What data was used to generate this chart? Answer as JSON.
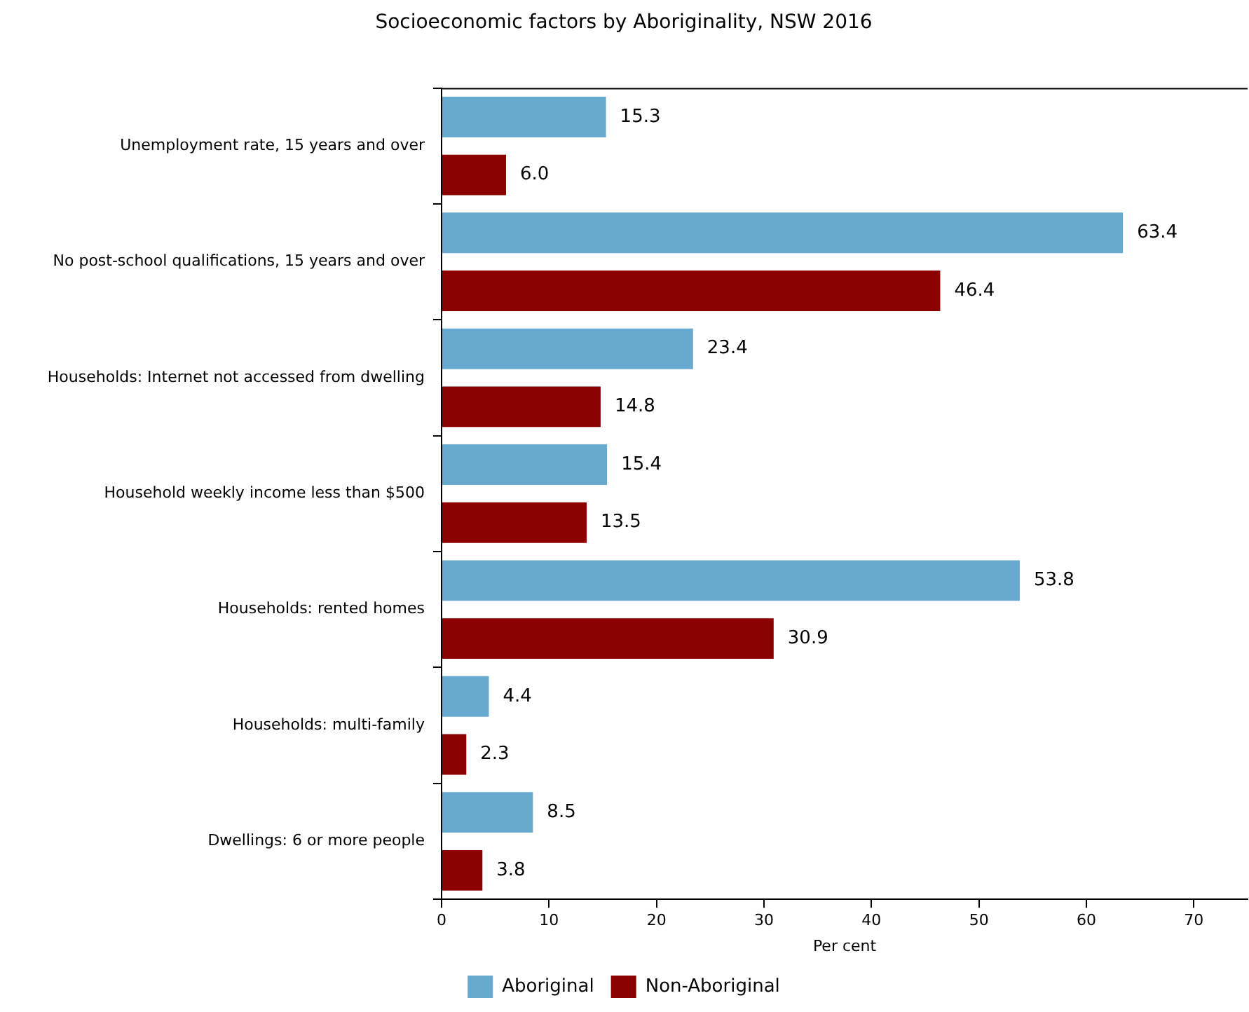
{
  "chart_data": {
    "type": "bar",
    "orientation": "horizontal",
    "title": "Socioeconomic factors by Aboriginality, NSW 2016",
    "xlabel": "Per cent",
    "categories": [
      "Unemployment rate, 15 years and over",
      "No post-school qualifications, 15 years and over",
      "Households: Internet not accessed from dwelling",
      "Household weekly income less than $500",
      "Households: rented homes",
      "Households: multi-family",
      "Dwellings: 6 or more people"
    ],
    "series": [
      {
        "name": "Aboriginal",
        "color": "#67a9cf",
        "values": [
          15.3,
          63.4,
          23.4,
          15.4,
          53.8,
          4.4,
          8.5
        ],
        "value_labels": [
          "15.3",
          "63.4",
          "23.4",
          "15.4",
          "53.8",
          "4.4",
          "8.5"
        ]
      },
      {
        "name": "Non-Aboriginal",
        "color": "#8b0000",
        "values": [
          6.0,
          46.4,
          14.8,
          13.5,
          30.9,
          2.3,
          3.8
        ],
        "value_labels": [
          "6.0",
          "46.4",
          "14.8",
          "13.5",
          "30.9",
          "2.3",
          "3.8"
        ]
      }
    ],
    "xlim": [
      0,
      75
    ],
    "xticks": [
      0,
      10,
      20,
      30,
      40,
      50,
      60,
      70
    ],
    "grid": false,
    "legend": "bottom"
  }
}
